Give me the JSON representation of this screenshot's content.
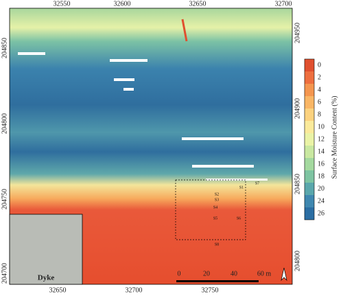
{
  "map": {
    "x_ticks_top": [
      32550,
      32600,
      32650,
      32700
    ],
    "x_ticks_bottom": [
      32650,
      32700,
      32750
    ],
    "y_ticks_left": [
      204850,
      204800,
      204750,
      204700
    ],
    "y_ticks_right": [
      204950,
      204900,
      204850,
      204800
    ],
    "colorbar": {
      "title": "Surface Moisture Content (%)",
      "labels": [
        0,
        2,
        4,
        6,
        8,
        10,
        12,
        14,
        16,
        18,
        20,
        24,
        26
      ],
      "colors": [
        "#e0502f",
        "#ee6f3f",
        "#f4964f",
        "#f9b665",
        "#fcd27f",
        "#fbea9b",
        "#eaf3a6",
        "#c9e8a1",
        "#a4d99f",
        "#7ec4a2",
        "#5aa7ac",
        "#3f88b0",
        "#2b6ea3"
      ]
    },
    "inset_label": "Dyke",
    "stations": [
      "S7",
      "S1",
      "S2",
      "S3",
      "S4",
      "S5",
      "S6",
      "S8"
    ],
    "scale_labels": [
      "0",
      "20",
      "40",
      "60 m"
    ]
  }
}
